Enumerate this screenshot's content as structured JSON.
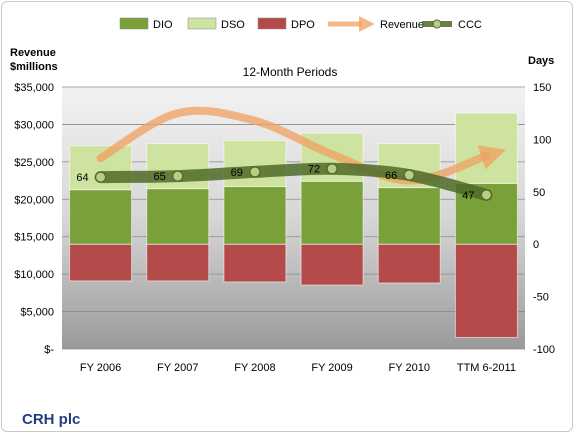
{
  "chart_data": {
    "type": "bar",
    "title": "12-Month Periods",
    "company": "CRH plc",
    "left_axis_title": [
      "Revenue",
      "$millions"
    ],
    "right_axis_title": "Days",
    "categories": [
      "FY 2006",
      "FY 2007",
      "FY 2008",
      "FY 2009",
      "FY 2010",
      "TTM 6-2011"
    ],
    "left_axis": {
      "ylim": [
        0,
        35000
      ],
      "ticks": [
        0,
        5000,
        10000,
        15000,
        20000,
        25000,
        30000,
        35000
      ],
      "tick_labels": [
        "$-",
        "$5,000",
        "$10,000",
        "$15,000",
        "$20,000",
        "$25,000",
        "$30,000",
        "$35,000"
      ]
    },
    "right_axis": {
      "ylim": [
        -100,
        150
      ],
      "ticks": [
        -100,
        -50,
        0,
        50,
        100,
        150
      ],
      "tick_labels": [
        "-100",
        "-50",
        "0",
        "50",
        "100",
        "150"
      ]
    },
    "legend": {
      "position": "top",
      "entries": [
        "DIO",
        "DSO",
        "DPO",
        "Revenue",
        "CCC"
      ]
    },
    "grid": true,
    "series": [
      {
        "name": "DIO",
        "type": "bar",
        "axis": "right",
        "color": "#7aa03a",
        "values": [
          52,
          53,
          55,
          60,
          54,
          58
        ]
      },
      {
        "name": "DSO",
        "type": "bar",
        "axis": "right",
        "color": "#cfe3a0",
        "values": [
          42,
          43,
          44,
          46,
          42,
          67
        ]
      },
      {
        "name": "DPO",
        "type": "bar",
        "axis": "right",
        "color": "#b54a4a",
        "values": [
          -35,
          -35,
          -36,
          -39,
          -37,
          -89
        ]
      },
      {
        "name": "Revenue",
        "type": "line",
        "axis": "left",
        "color": "#f0a060",
        "values": [
          25500,
          31500,
          30500,
          26000,
          22500,
          25800
        ]
      },
      {
        "name": "CCC",
        "type": "line",
        "axis": "right",
        "color": "#4f6a28",
        "values": [
          64,
          65,
          69,
          72,
          66,
          47
        ],
        "labels": [
          "64",
          "65",
          "69",
          "72",
          "66",
          "47"
        ]
      }
    ]
  }
}
